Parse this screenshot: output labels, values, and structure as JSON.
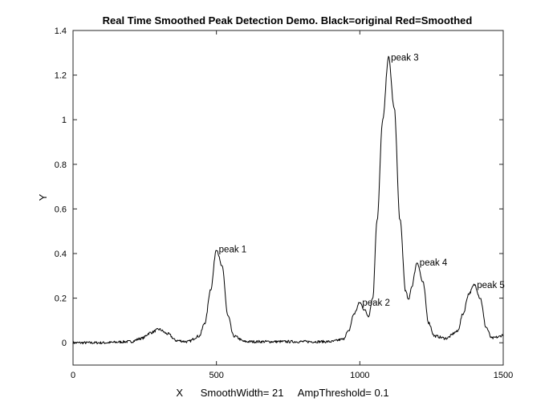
{
  "chart_data": {
    "type": "line",
    "title": "Real Time Smoothed Peak Detection Demo.  Black=original   Red=Smoothed",
    "xlabel": "X      SmoothWidth= 21     AmpThreshold= 0.1",
    "ylabel": "Y",
    "xlim": [
      0,
      1500
    ],
    "ylim": [
      -0.1,
      1.4
    ],
    "xticks": [
      0,
      500,
      1000,
      1500
    ],
    "yticks": [
      0,
      0.2,
      0.4,
      0.6,
      0.8,
      1,
      1.2,
      1.4
    ],
    "grid": false,
    "series": [
      {
        "color": "#000000",
        "x": [
          0,
          100,
          200,
          240,
          270,
          300,
          330,
          360,
          400,
          440,
          460,
          480,
          500,
          520,
          540,
          560,
          600,
          700,
          800,
          900,
          940,
          960,
          980,
          1000,
          1015,
          1030,
          1045,
          1060,
          1080,
          1100,
          1120,
          1140,
          1160,
          1170,
          1180,
          1200,
          1220,
          1240,
          1260,
          1300,
          1340,
          1360,
          1380,
          1400,
          1420,
          1440,
          1460,
          1480,
          1500
        ],
        "y": [
          0,
          0,
          0.005,
          0.02,
          0.045,
          0.06,
          0.04,
          0.01,
          0.005,
          0.03,
          0.09,
          0.24,
          0.42,
          0.34,
          0.12,
          0.03,
          0.005,
          0.005,
          0.005,
          0.005,
          0.015,
          0.05,
          0.13,
          0.18,
          0.15,
          0.12,
          0.2,
          0.55,
          1.0,
          1.28,
          1.05,
          0.55,
          0.23,
          0.19,
          0.25,
          0.36,
          0.27,
          0.09,
          0.03,
          0.02,
          0.05,
          0.13,
          0.22,
          0.26,
          0.2,
          0.07,
          0.02,
          0.025,
          0.035
        ]
      }
    ],
    "annotations": [
      {
        "text": "peak 1",
        "x": 500,
        "y": 0.42
      },
      {
        "text": "peak 2",
        "x": 1000,
        "y": 0.18
      },
      {
        "text": "peak 3",
        "x": 1100,
        "y": 1.28
      },
      {
        "text": "peak 4",
        "x": 1200,
        "y": 0.36
      },
      {
        "text": "peak 5",
        "x": 1400,
        "y": 0.26
      }
    ]
  }
}
